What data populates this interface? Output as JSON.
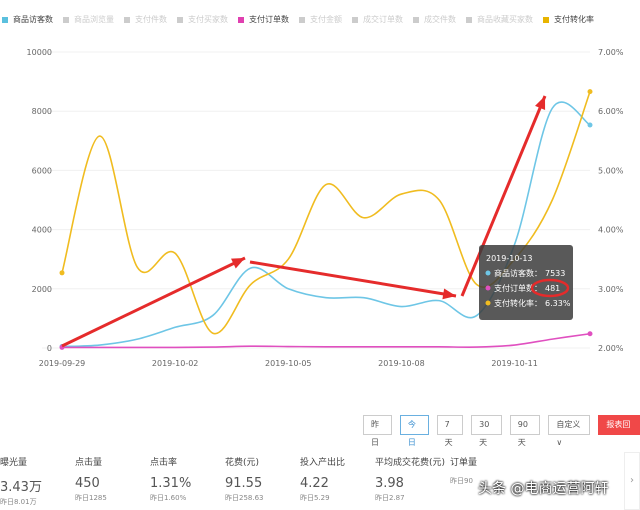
{
  "legend": [
    {
      "label": "商品访客数",
      "color": "#5bc0de",
      "active": true
    },
    {
      "label": "商品浏览量",
      "color": "#cccccc",
      "active": false
    },
    {
      "label": "支付件数",
      "color": "#cccccc",
      "active": false
    },
    {
      "label": "支付买家数",
      "color": "#cccccc",
      "active": false
    },
    {
      "label": "支付订单数",
      "color": "#e040b0",
      "active": true
    },
    {
      "label": "支付金额",
      "color": "#cccccc",
      "active": false
    },
    {
      "label": "成交订单数",
      "color": "#cccccc",
      "active": false
    },
    {
      "label": "成交件数",
      "color": "#cccccc",
      "active": false
    },
    {
      "label": "商品收藏买家数",
      "color": "#cccccc",
      "active": false
    },
    {
      "label": "支付转化率",
      "color": "#e8b400",
      "active": true
    }
  ],
  "chart_data": {
    "type": "line",
    "x": [
      "2019-09-29",
      "2019-09-30",
      "2019-10-01",
      "2019-10-02",
      "2019-10-03",
      "2019-10-04",
      "2019-10-05",
      "2019-10-06",
      "2019-10-07",
      "2019-10-08",
      "2019-10-09",
      "2019-10-10",
      "2019-10-11",
      "2019-10-12",
      "2019-10-13"
    ],
    "x_tick_labels": [
      "2019-09-29",
      "2019-10-02",
      "2019-10-05",
      "2019-10-08",
      "2019-10-11"
    ],
    "y_left": {
      "range": [
        0,
        10000
      ],
      "ticks": [
        "0",
        "2000",
        "4000",
        "6000",
        "8000",
        "10000"
      ]
    },
    "y_right": {
      "range": [
        2,
        7
      ],
      "ticks": [
        "2.00%",
        "3.00%",
        "4.00%",
        "5.00%",
        "6.00%",
        "7.00%"
      ]
    },
    "series": [
      {
        "name": "商品访客数",
        "axis": "left",
        "color": "#6ec6e6",
        "values": [
          50,
          100,
          300,
          700,
          1100,
          2700,
          2000,
          1700,
          1700,
          1400,
          1600,
          1100,
          3500,
          8100,
          7533
        ]
      },
      {
        "name": "支付订单数",
        "axis": "left",
        "color": "#e050c0",
        "values": [
          20,
          20,
          20,
          20,
          30,
          60,
          50,
          40,
          40,
          40,
          40,
          30,
          100,
          300,
          481
        ]
      },
      {
        "name": "支付转化率",
        "axis": "right",
        "color": "#f0bc20",
        "values": [
          3.27,
          5.58,
          3.36,
          3.6,
          2.25,
          3.07,
          3.5,
          4.76,
          4.2,
          4.6,
          4.5,
          3.07,
          3.5,
          4.5,
          6.33
        ]
      }
    ],
    "grid": true,
    "tooltip": {
      "title": "2019-10-13",
      "rows": [
        {
          "label": "商品访客数：",
          "value": "7533",
          "color": "#6ec6e6"
        },
        {
          "label": "支付订单数：",
          "value": "481",
          "color": "#e050c0"
        },
        {
          "label": "支付转化率：",
          "value": "6.33%",
          "color": "#f0bc20"
        }
      ]
    }
  },
  "buttons": [
    "昨日",
    "今日",
    "7天",
    "30天",
    "90天",
    "自定义 ∨",
    "报表回流"
  ],
  "metrics": [
    {
      "label": "曝光量",
      "value": "3.43万",
      "prev": "昨日8.01万"
    },
    {
      "label": "点击量",
      "value": "450",
      "prev": "昨日1285"
    },
    {
      "label": "点击率",
      "value": "1.31%",
      "prev": "昨日1.60%"
    },
    {
      "label": "花费(元)",
      "value": "91.55",
      "prev": "昨日258.63"
    },
    {
      "label": "投入产出比",
      "value": "4.22",
      "prev": "昨日5.29"
    },
    {
      "label": "平均成交花费(元)",
      "value": "3.98",
      "prev": "昨日2.87"
    },
    {
      "label": "订单量",
      "value": "",
      "prev": "昨日90"
    }
  ],
  "watermark": "头条 @电商运营阿轩",
  "next_arrow": "›"
}
